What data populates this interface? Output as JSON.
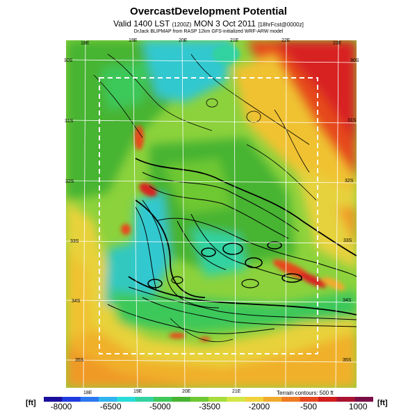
{
  "header": {
    "title": "OvercastDevelopment Potential",
    "subtitle_main": "Valid 1400 LST",
    "subtitle_time_small": "(1200Z)",
    "subtitle_date": "MON 3 Oct 2011",
    "subtitle_forecast_small": "[18hrFcst@0000z]",
    "credit": "DrJack BLIPMAP from RASP 12km GFS-initialized WRF-ARW model"
  },
  "map": {
    "lon_labels_top": [
      "18E",
      "19E",
      "20E",
      "21E",
      "22E",
      "23E"
    ],
    "lon_labels_bottom": [
      "18E",
      "19E",
      "20E",
      "21E"
    ],
    "lat_labels_left": [
      "30S",
      "31S",
      "32S",
      "33S",
      "34S",
      "35S"
    ],
    "lat_labels_right": [
      "30S",
      "31S",
      "32S",
      "33S",
      "34S",
      "35S"
    ],
    "contour_note": "Terrain contours: 500 ft"
  },
  "colorbar": {
    "unit_left": "[ft]",
    "unit_right": "[ft]",
    "labels": [
      "-8000",
      "-6500",
      "-5000",
      "-3500",
      "-2000",
      "-500",
      "1000"
    ],
    "colors": [
      "#1a0f9c",
      "#1f3be0",
      "#2b78f0",
      "#30b4f0",
      "#28dcd8",
      "#33d2a0",
      "#3ec85a",
      "#46b432",
      "#6ec832",
      "#a6dc3c",
      "#d2e646",
      "#f0d23c",
      "#f0aa2d",
      "#ee7a22",
      "#e6461e",
      "#d21e1e",
      "#aa1432",
      "#7a0f46"
    ]
  }
}
